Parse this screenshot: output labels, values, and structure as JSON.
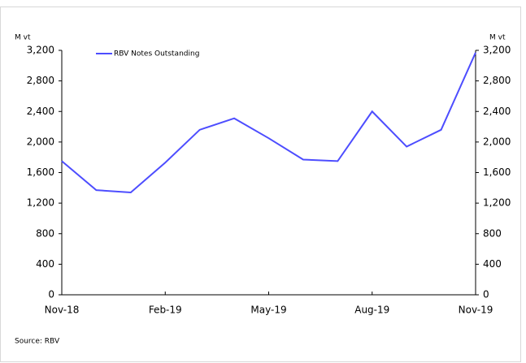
{
  "chart_data": {
    "type": "line",
    "y_label": "M vt",
    "y2_label": "M vt",
    "source": "Source: RBV",
    "categories": [
      "Nov-18",
      null,
      null,
      "Feb-19",
      null,
      null,
      "May-19",
      null,
      null,
      "Aug-19",
      null,
      null,
      "Nov-19"
    ],
    "series": [
      {
        "name": "RBV Notes Outstanding",
        "color": "#4d4dff",
        "values": [
          1750,
          1370,
          1340,
          1730,
          2160,
          2310,
          2050,
          1770,
          1750,
          2400,
          1940,
          2160,
          3170
        ]
      }
    ],
    "ylim": [
      0,
      3200
    ],
    "yticks": [
      0,
      400,
      800,
      {
        "value": 1200,
        "label": "1,200"
      },
      {
        "value": 1600,
        "label": "1,600"
      },
      {
        "value": 2000,
        "label": "2,000"
      },
      {
        "value": 2400,
        "label": "2,400"
      },
      {
        "value": 2800,
        "label": "2,800"
      },
      {
        "value": 3200,
        "label": "3,200"
      }
    ],
    "y2lim": [
      0,
      3200
    ],
    "y2ticks": [
      0,
      400,
      800,
      {
        "value": 1200,
        "label": "1,200"
      },
      {
        "value": 1600,
        "label": "1,600"
      },
      {
        "value": 2000,
        "label": "2,000"
      },
      {
        "value": 2400,
        "label": "2,400"
      },
      {
        "value": 2800,
        "label": "2,800"
      },
      {
        "value": 3200,
        "label": "3,200"
      }
    ],
    "legend": "top-left"
  }
}
